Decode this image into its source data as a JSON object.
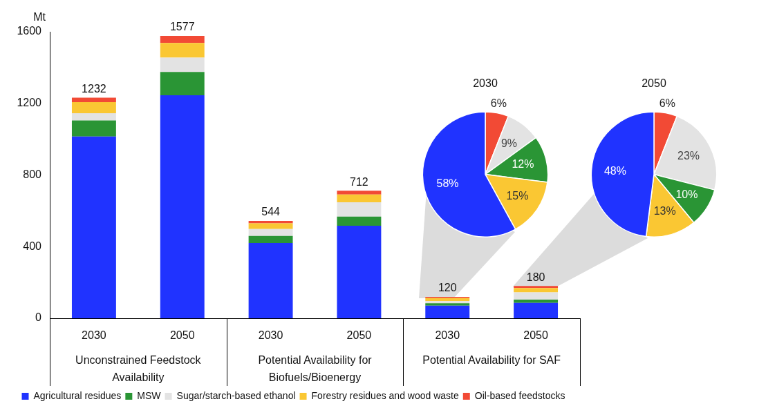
{
  "chart_data": [
    {
      "type": "bar",
      "stacked": true,
      "ylabel": "Mt",
      "categories": [
        "2030",
        "2050",
        "2030",
        "2050",
        "2030",
        "2050"
      ],
      "annotations": [
        "Unconstrained Feedstock Availability",
        "Potential Availability for Biofuels/Bioenergy",
        "Potential Availability for SAF"
      ],
      "series": [
        {
          "name": "Agricultural residues",
          "color": "#2033ff",
          "values": [
            1015,
            1245,
            420,
            517,
            70,
            86
          ]
        },
        {
          "name": "MSW",
          "color": "#2a9535",
          "values": [
            90,
            130,
            40,
            51,
            14,
            18
          ]
        },
        {
          "name": "Sugar/starch-based ethanol",
          "color": "#e3e3e3",
          "values": [
            40,
            80,
            38,
            80,
            11,
            41
          ]
        },
        {
          "name": "Forestry residues and wood waste",
          "color": "#fac733",
          "values": [
            62,
            82,
            32,
            43,
            18,
            24
          ]
        },
        {
          "name": "Oil-based feedstocks",
          "color": "#f24a35",
          "values": [
            25,
            40,
            14,
            21,
            7,
            11
          ]
        }
      ],
      "totals": [
        "1232",
        "1577",
        "544",
        "712",
        "120",
        "180"
      ],
      "ylim": [
        0,
        1600
      ],
      "yticks": [
        0,
        400,
        800,
        1200,
        1600
      ],
      "grid": false,
      "legend": "bottom"
    },
    {
      "type": "pie",
      "title": "2030",
      "categories": [
        null,
        null,
        null,
        null,
        null
      ],
      "values": [
        6,
        9,
        12,
        15,
        58
      ],
      "value_labels": [
        "6%",
        "9%",
        "12%",
        "15%",
        "58%"
      ],
      "colors": [
        "#f24a35",
        "#e3e3e3",
        "#2a9535",
        "#fac733",
        "#2033ff"
      ],
      "legend": false
    },
    {
      "type": "pie",
      "title": "2050",
      "categories": [
        null,
        null,
        null,
        null,
        null
      ],
      "values": [
        6,
        23,
        10,
        13,
        48
      ],
      "value_labels": [
        "6%",
        "23%",
        "10%",
        "13%",
        "48%"
      ],
      "colors": [
        "#f24a35",
        "#e3e3e3",
        "#2a9535",
        "#fac733",
        "#2033ff"
      ],
      "legend": false
    }
  ]
}
